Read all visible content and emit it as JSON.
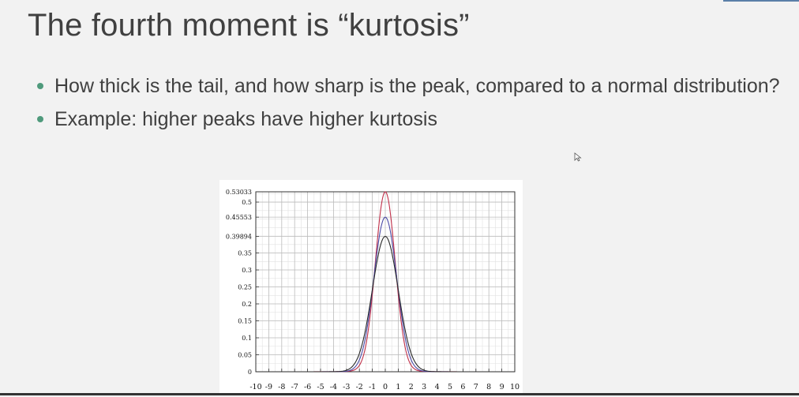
{
  "slide": {
    "title": "The fourth moment is “kurtosis”",
    "bullets": [
      "How thick is the tail, and how sharp is the peak, compared to a normal distribution?",
      "Example: higher peaks have higher kurtosis"
    ]
  },
  "colors": {
    "bullet": "#4f9a7c",
    "text": "#404040",
    "series": [
      "#c0304a",
      "#4a4aa6",
      "#2a2a2a"
    ]
  },
  "chart_data": {
    "type": "line",
    "title": "",
    "xlabel": "",
    "ylabel": "",
    "xlim": [
      -10,
      10
    ],
    "ylim": [
      0,
      0.53033
    ],
    "grid": true,
    "legend": "none",
    "x_ticks": [
      -10,
      -9,
      -8,
      -7,
      -6,
      -5,
      -4,
      -3,
      -2,
      -1,
      0,
      1,
      2,
      3,
      4,
      5,
      6,
      7,
      8,
      9,
      10
    ],
    "y_ticks": [
      0,
      0.05,
      0.1,
      0.15,
      0.2,
      0.25,
      0.3,
      0.35,
      0.39894,
      0.45553,
      0.5,
      0.53033
    ],
    "y_tick_labels": [
      "0",
      "0.05",
      "0.1",
      "0.15",
      "0.2",
      "0.25",
      "0.3",
      "0.35",
      "0.39894",
      "0.45553",
      "0.5",
      "0.53033"
    ],
    "series": [
      {
        "peak": 0.53033,
        "color": "#c0304a"
      },
      {
        "peak": 0.45553,
        "color": "#4a4aa6"
      },
      {
        "peak": 0.39894,
        "color": "#2a2a2a"
      }
    ]
  }
}
